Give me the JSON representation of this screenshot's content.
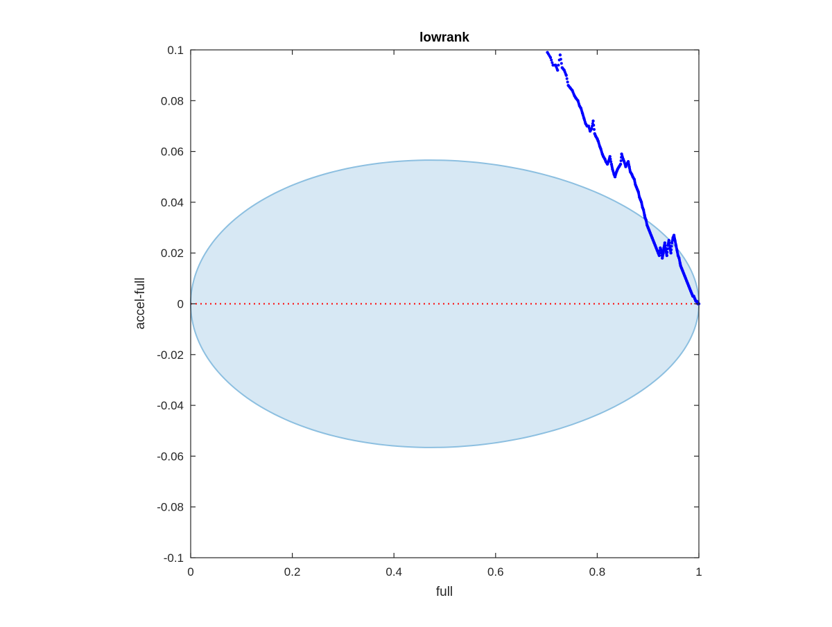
{
  "chart_data": {
    "type": "scatter",
    "title": "lowrank",
    "xlabel": "full",
    "ylabel": "accel-full",
    "xlim": [
      0,
      1
    ],
    "ylim": [
      -0.1,
      0.1
    ],
    "xticks": [
      0,
      0.2,
      0.4,
      0.6,
      0.8,
      1
    ],
    "xtick_labels": [
      "0",
      "0.2",
      "0.4",
      "0.6",
      "0.8",
      "1"
    ],
    "yticks": [
      0.1,
      0.08,
      0.06,
      0.04,
      0.02,
      0,
      -0.02,
      -0.04,
      -0.06,
      -0.08,
      -0.1
    ],
    "ytick_labels": [
      "0.1",
      "0.08",
      "0.06",
      "0.04",
      "0.02",
      "0",
      "-0.02",
      "-0.04",
      "-0.06",
      "-0.08",
      "-0.1"
    ],
    "grid": false,
    "box": true,
    "reference_line": {
      "y": 0,
      "style": "dotted",
      "color": "#ff0000"
    },
    "region": {
      "shape": "ellipse",
      "center": [
        0.5,
        0
      ],
      "semi_axes": [
        0.5,
        0.0565
      ],
      "tilt": -0.055,
      "fill": "#d7e8f4",
      "stroke": "#8cbfe0"
    },
    "series": [
      {
        "color": "#0000ff",
        "marker": "dot",
        "x": [
          0.702,
          0.708,
          0.713,
          0.718,
          0.722,
          0.727,
          0.731,
          0.735,
          0.739,
          0.743,
          0.747,
          0.751,
          0.755,
          0.758,
          0.762,
          0.765,
          0.768,
          0.771,
          0.774,
          0.777,
          0.78,
          0.783,
          0.786,
          0.789,
          0.792,
          0.795,
          0.797,
          0.8,
          0.802,
          0.805,
          0.807,
          0.81,
          0.812,
          0.815,
          0.817,
          0.82,
          0.822,
          0.825,
          0.828,
          0.83,
          0.833,
          0.835,
          0.838,
          0.84,
          0.843,
          0.846,
          0.848,
          0.851,
          0.853,
          0.856,
          0.858,
          0.861,
          0.863,
          0.865,
          0.868,
          0.87,
          0.873,
          0.875,
          0.877,
          0.879,
          0.881,
          0.883,
          0.885,
          0.887,
          0.889,
          0.891,
          0.893,
          0.894,
          0.896,
          0.898,
          0.9,
          0.902,
          0.904,
          0.906,
          0.908,
          0.91,
          0.912,
          0.914,
          0.916,
          0.918,
          0.92,
          0.922,
          0.924,
          0.926,
          0.928,
          0.93,
          0.931,
          0.933,
          0.935,
          0.937,
          0.939,
          0.941,
          0.943,
          0.945,
          0.947,
          0.949,
          0.951,
          0.953,
          0.955,
          0.957,
          0.959,
          0.961,
          0.963,
          0.964,
          0.966,
          0.968,
          0.97,
          0.972,
          0.974,
          0.976,
          0.978,
          0.98,
          0.982,
          0.984,
          0.986,
          0.988,
          0.99,
          0.992,
          0.994,
          0.996,
          0.998,
          1.0
        ],
        "y": [
          0.099,
          0.097,
          0.094,
          0.094,
          0.092,
          0.098,
          0.093,
          0.092,
          0.09,
          0.086,
          0.085,
          0.084,
          0.082,
          0.081,
          0.08,
          0.078,
          0.077,
          0.075,
          0.073,
          0.071,
          0.07,
          0.07,
          0.068,
          0.069,
          0.072,
          0.067,
          0.066,
          0.065,
          0.064,
          0.062,
          0.061,
          0.059,
          0.058,
          0.057,
          0.056,
          0.055,
          0.056,
          0.058,
          0.055,
          0.053,
          0.051,
          0.05,
          0.052,
          0.053,
          0.054,
          0.055,
          0.059,
          0.057,
          0.056,
          0.054,
          0.055,
          0.056,
          0.054,
          0.052,
          0.051,
          0.05,
          0.049,
          0.047,
          0.046,
          0.045,
          0.044,
          0.042,
          0.041,
          0.04,
          0.038,
          0.037,
          0.035,
          0.034,
          0.033,
          0.031,
          0.03,
          0.029,
          0.028,
          0.027,
          0.026,
          0.025,
          0.024,
          0.023,
          0.022,
          0.021,
          0.02,
          0.019,
          0.022,
          0.021,
          0.018,
          0.02,
          0.022,
          0.024,
          0.021,
          0.019,
          0.023,
          0.025,
          0.022,
          0.02,
          0.024,
          0.026,
          0.027,
          0.025,
          0.023,
          0.021,
          0.019,
          0.018,
          0.016,
          0.015,
          0.014,
          0.013,
          0.012,
          0.011,
          0.01,
          0.009,
          0.008,
          0.007,
          0.006,
          0.005,
          0.004,
          0.003,
          0.003,
          0.002,
          0.001,
          0.001,
          0.0,
          0.0
        ]
      }
    ]
  }
}
